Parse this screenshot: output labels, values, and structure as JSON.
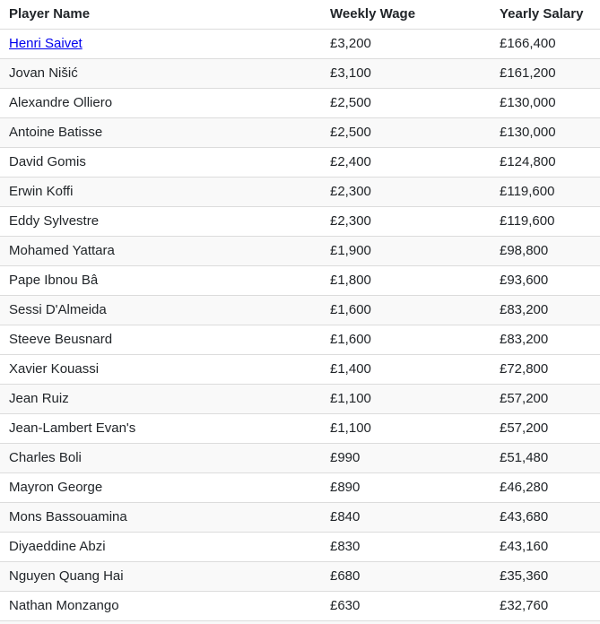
{
  "table": {
    "columns": [
      "Player Name",
      "Weekly Wage",
      "Yearly Salary"
    ],
    "link_color": "#0000EE",
    "stripe_color": "#f9f9f9",
    "border_color": "#dcdcdc",
    "rows": [
      {
        "name": "Henri Saivet",
        "wage": "£3,200",
        "salary": "£166,400",
        "link": true,
        "shaded": false
      },
      {
        "name": "Jovan Nišić",
        "wage": "£3,100",
        "salary": "£161,200",
        "link": false,
        "shaded": true
      },
      {
        "name": "Alexandre Olliero",
        "wage": "£2,500",
        "salary": "£130,000",
        "link": false,
        "shaded": false
      },
      {
        "name": "Antoine Batisse",
        "wage": "£2,500",
        "salary": "£130,000",
        "link": false,
        "shaded": true
      },
      {
        "name": "David Gomis",
        "wage": "£2,400",
        "salary": "£124,800",
        "link": false,
        "shaded": false
      },
      {
        "name": "Erwin Koffi",
        "wage": "£2,300",
        "salary": "£119,600",
        "link": false,
        "shaded": true
      },
      {
        "name": "Eddy Sylvestre",
        "wage": "£2,300",
        "salary": "£119,600",
        "link": false,
        "shaded": false
      },
      {
        "name": "Mohamed Yattara",
        "wage": "£1,900",
        "salary": "£98,800",
        "link": false,
        "shaded": true
      },
      {
        "name": "Pape Ibnou Bâ",
        "wage": "£1,800",
        "salary": "£93,600",
        "link": false,
        "shaded": false
      },
      {
        "name": "Sessi D'Almeida",
        "wage": "£1,600",
        "salary": "£83,200",
        "link": false,
        "shaded": true
      },
      {
        "name": "Steeve Beusnard",
        "wage": "£1,600",
        "salary": "£83,200",
        "link": false,
        "shaded": false
      },
      {
        "name": "Xavier Kouassi",
        "wage": "£1,400",
        "salary": "£72,800",
        "link": false,
        "shaded": false
      },
      {
        "name": "Jean Ruiz",
        "wage": "£1,100",
        "salary": "£57,200",
        "link": false,
        "shaded": true
      },
      {
        "name": "Jean-Lambert Evan's",
        "wage": "£1,100",
        "salary": "£57,200",
        "link": false,
        "shaded": false
      },
      {
        "name": "Charles Boli",
        "wage": "£990",
        "salary": "£51,480",
        "link": false,
        "shaded": true
      },
      {
        "name": "Mayron George",
        "wage": "£890",
        "salary": "£46,280",
        "link": false,
        "shaded": false
      },
      {
        "name": "Mons Bassouamina",
        "wage": "£840",
        "salary": "£43,680",
        "link": false,
        "shaded": true
      },
      {
        "name": "Diyaeddine Abzi",
        "wage": "£830",
        "salary": "£43,160",
        "link": false,
        "shaded": false
      },
      {
        "name": "Nguyen Quang Hai",
        "wage": "£680",
        "salary": "£35,360",
        "link": false,
        "shaded": true
      },
      {
        "name": "Nathan Monzango",
        "wage": "£630",
        "salary": "£32,760",
        "link": false,
        "shaded": false
      }
    ]
  }
}
